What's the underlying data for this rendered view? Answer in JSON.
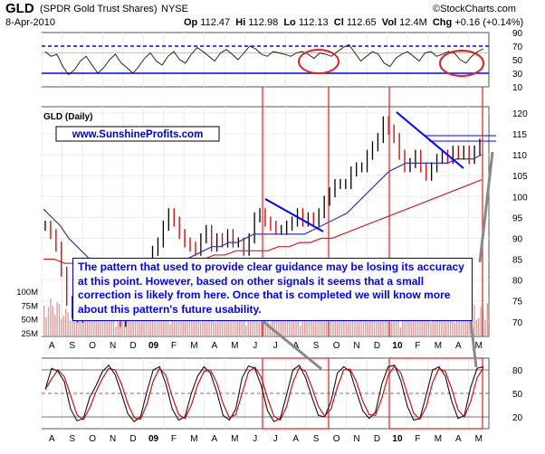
{
  "header": {
    "ticker": "GLD",
    "name": "(SPDR Gold Trust Shares)",
    "exchange": "NYSE",
    "date": "8-Apr-2010",
    "op_label": "Op",
    "op": "112.47",
    "hi_label": "Hi",
    "hi": "112.98",
    "lo_label": "Lo",
    "lo": "112.13",
    "cl_label": "Cl",
    "cl": "112.65",
    "vol_label": "Vol",
    "vol": "12.4M",
    "chg_label": "Chg",
    "chg": "+0.16 (+0.14%)",
    "watermark": "©StockCharts.com"
  },
  "colors": {
    "price_up": "#000000",
    "price_down": "#cc0000",
    "ma_fast": "#3333aa",
    "ma_slow": "#cc2222",
    "annotation": "#dd2222",
    "trendline": "#0000ff",
    "note_text": "#0000ff",
    "note_border": "#0000cc",
    "volume": "#d9a0a0"
  },
  "chart_data": {
    "type": "line",
    "months": [
      "A",
      "S",
      "O",
      "N",
      "D",
      "09",
      "F",
      "M",
      "A",
      "M",
      "J",
      "J",
      "A",
      "S",
      "O",
      "N",
      "D",
      "10",
      "F",
      "M",
      "A",
      "M"
    ],
    "panels": {
      "rsi": {
        "ticks": [
          90,
          70,
          50,
          30,
          10
        ],
        "ylim": [
          10,
          90
        ],
        "levels": [
          70,
          60,
          30
        ],
        "values": [
          62,
          55,
          58,
          40,
          28,
          35,
          48,
          55,
          42,
          30,
          38,
          50,
          58,
          45,
          38,
          30,
          40,
          52,
          60,
          48,
          42,
          55,
          62,
          50,
          45,
          58,
          68,
          62,
          55,
          48,
          60,
          65,
          58,
          50,
          60,
          70,
          66,
          58,
          55,
          62,
          60,
          58,
          55,
          60,
          62,
          58,
          52,
          60,
          58,
          55,
          62,
          68,
          72,
          60,
          48,
          55,
          62,
          58,
          45,
          40,
          52,
          58,
          62,
          55,
          48,
          60,
          62,
          55,
          58,
          62,
          60,
          50,
          45,
          55,
          62,
          66
        ]
      },
      "price": {
        "label": "GLD (Daily)",
        "watermark": "www.SunshineProfits.com",
        "ticks": [
          120,
          115,
          110,
          105,
          100,
          95,
          90,
          85,
          80,
          75,
          70
        ],
        "ylim": [
          66.5,
          121.5
        ],
        "volume_ticks": [
          "100M",
          "75M",
          "50M",
          "25M"
        ],
        "closes": [
          93,
          91,
          88,
          82,
          75,
          72,
          71,
          76,
          79,
          78,
          74,
          75,
          78,
          76,
          70,
          72,
          75,
          79,
          82,
          84,
          87,
          89,
          93,
          96,
          94,
          91,
          89,
          88,
          87,
          90,
          92,
          88,
          90,
          89,
          91,
          89,
          89,
          87,
          90,
          95,
          96,
          94,
          93,
          92,
          92,
          93,
          94,
          96,
          94,
          95,
          94,
          96,
          99,
          101,
          103,
          103,
          103,
          106,
          107,
          107,
          110,
          112,
          114,
          118,
          116,
          114,
          110,
          107,
          108,
          110,
          107,
          105,
          107,
          109,
          110,
          109,
          111,
          110,
          111,
          109,
          111,
          112.65
        ],
        "ma50": [
          97,
          95,
          93,
          90,
          88,
          86,
          84,
          83,
          83,
          83,
          82,
          82,
          82,
          82,
          82,
          83,
          84,
          85,
          86,
          87,
          88,
          88,
          89,
          89,
          90,
          91,
          91,
          91,
          91,
          91,
          91,
          91,
          92,
          93,
          94,
          95,
          96,
          98,
          100,
          102,
          104,
          106,
          107,
          108,
          108,
          108,
          108,
          108,
          108,
          109,
          109,
          109,
          110
        ],
        "ma200": [
          85,
          85,
          84,
          84,
          84,
          84,
          84,
          84,
          84,
          84,
          85,
          85,
          85,
          85,
          85,
          85,
          86,
          86,
          87,
          87,
          87,
          87,
          88,
          88,
          89,
          89,
          90,
          90,
          91,
          92,
          93,
          94,
          95,
          96,
          97,
          98,
          99,
          100,
          101,
          102,
          103,
          104
        ]
      },
      "stochastic": {
        "ticks": [
          80,
          50,
          20
        ],
        "ylim": [
          5,
          95
        ],
        "values": [
          55,
          82,
          78,
          65,
          30,
          15,
          18,
          45,
          60,
          78,
          86,
          74,
          50,
          24,
          14,
          20,
          52,
          80,
          84,
          62,
          30,
          16,
          20,
          50,
          72,
          84,
          76,
          52,
          22,
          16,
          30,
          70,
          85,
          82,
          60,
          28,
          14,
          18,
          48,
          80,
          86,
          70,
          45,
          22,
          20,
          40,
          76,
          84,
          78,
          52,
          28,
          18,
          26,
          62,
          84,
          86,
          66,
          34,
          16,
          18,
          48,
          80,
          84,
          72,
          40,
          18,
          22,
          58,
          82,
          84
        ]
      }
    },
    "annotation": "The pattern that used to provide clear guidance may be losing its accuracy at this point. However, based on other signals it seems that a small correction is likely from here. Once that is completed we will know more about this pattern's future usability."
  }
}
